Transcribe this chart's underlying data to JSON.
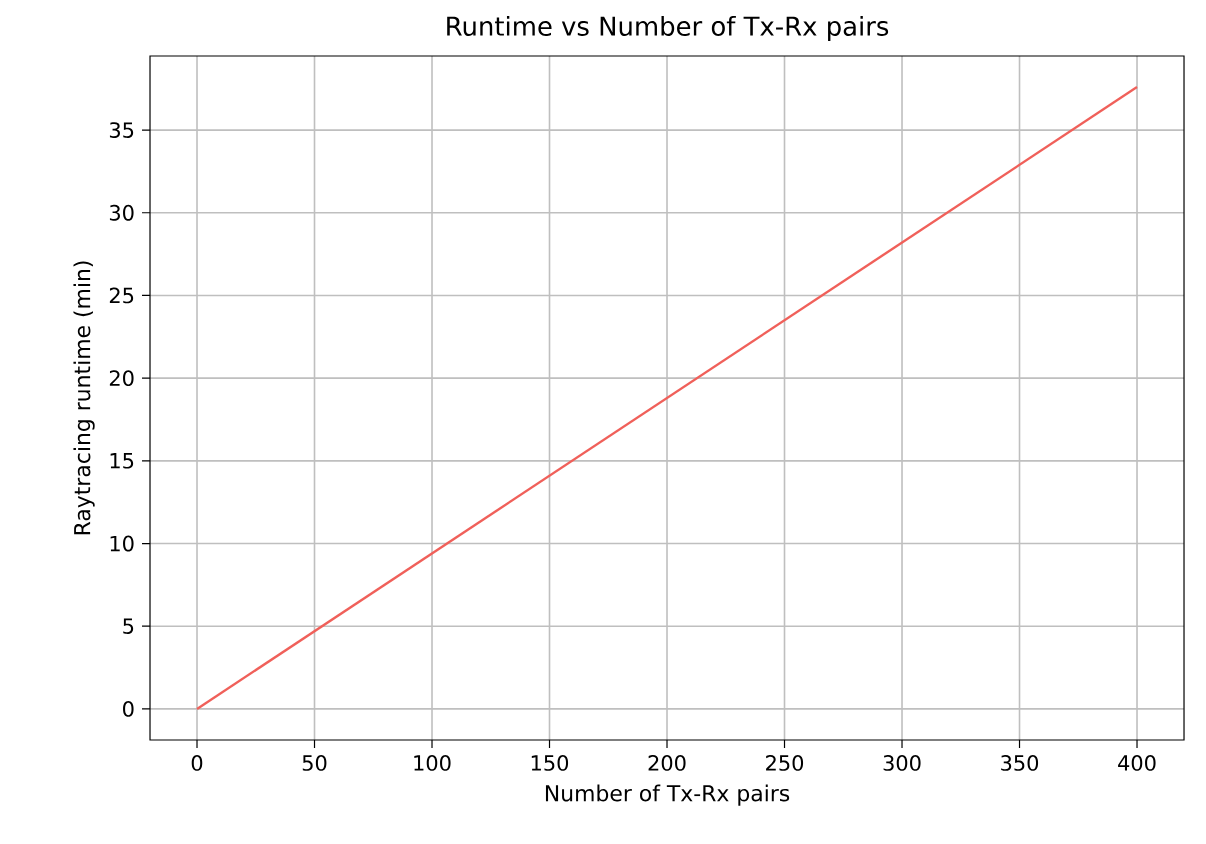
{
  "chart_data": {
    "type": "line",
    "title": "Runtime vs Number of Tx-Rx pairs",
    "xlabel": "Number of Tx-Rx pairs",
    "ylabel": "Raytracing runtime (min)",
    "x": [
      0,
      400
    ],
    "series": [
      {
        "color": "#f0605a",
        "values": [
          0,
          37.6
        ]
      }
    ],
    "xlim": [
      -20,
      420
    ],
    "ylim": [
      -1.88,
      39.48
    ],
    "xticks": [
      0,
      50,
      100,
      150,
      200,
      250,
      300,
      350,
      400
    ],
    "yticks": [
      0,
      5,
      10,
      15,
      20,
      25,
      30,
      35
    ],
    "grid": true
  }
}
